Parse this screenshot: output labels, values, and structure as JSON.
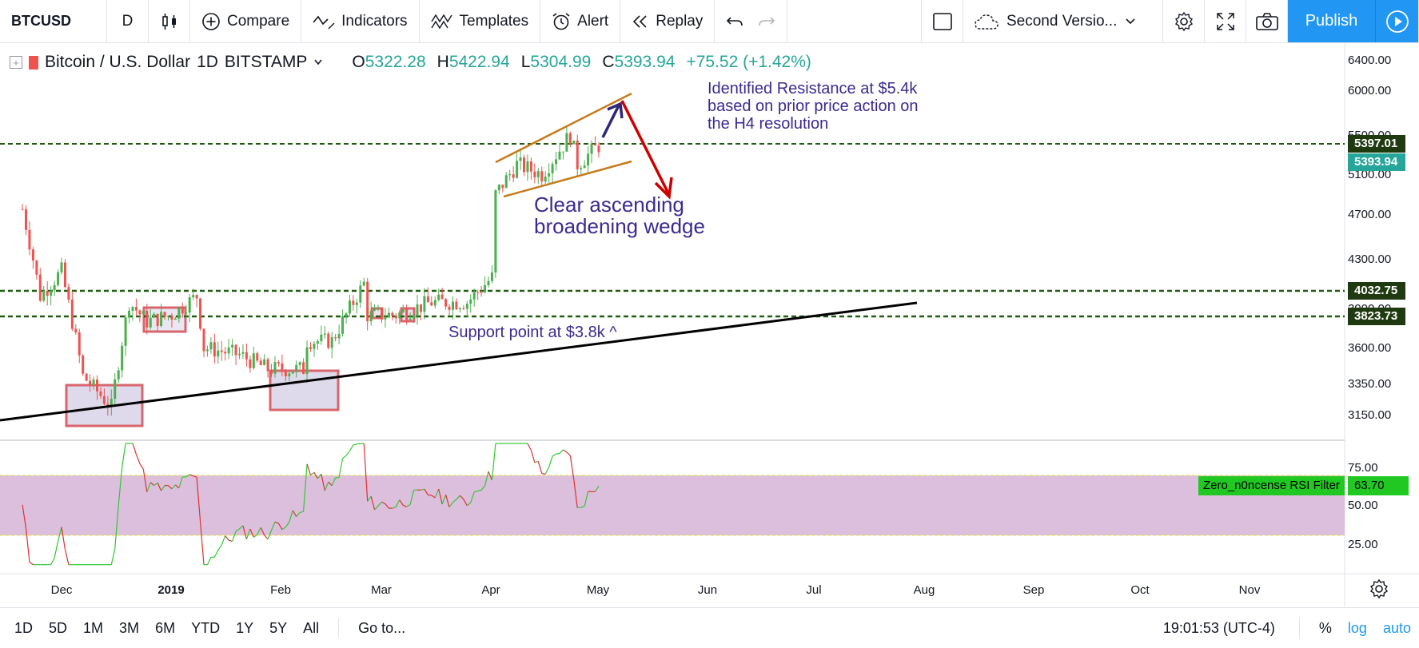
{
  "toolbar": {
    "symbol": "BTCUSD",
    "interval": "D",
    "compare": "Compare",
    "indicators": "Indicators",
    "templates": "Templates",
    "alert": "Alert",
    "replay": "Replay",
    "layout_name": "Second Versio...",
    "publish": "Publish"
  },
  "legend": {
    "title": "Bitcoin / U.S. Dollar",
    "interval": "1D",
    "exchange": "BITSTAMP",
    "o_label": "O",
    "o": "5322.28",
    "h_label": "H",
    "h": "5422.94",
    "l_label": "L",
    "l": "5304.99",
    "c_label": "C",
    "c": "5393.94",
    "change": "+75.52 (+1.42%)"
  },
  "annotations": {
    "resistance": [
      "Identified Resistance at $5.4k",
      "based on prior price action on",
      "the H4 resolution"
    ],
    "wedge": [
      "Clear ascending",
      "broadening wedge"
    ],
    "support": "Support point at $3.8k ^"
  },
  "price_axis": {
    "ticks": [
      "6400.00",
      "6000.00",
      "5500.00",
      "5100.00",
      "4700.00",
      "4300.00",
      "3900.00",
      "3600.00",
      "3350.00",
      "3150.00"
    ],
    "tags": [
      {
        "text": "5397.01",
        "color": "#1f3a10"
      },
      {
        "text": "5393.94",
        "color": "#26a69a"
      },
      {
        "text": "4032.75",
        "color": "#1f3a10"
      },
      {
        "text": "3823.73",
        "color": "#1f3a10"
      }
    ]
  },
  "rsi": {
    "name": "Zero_n0ncense RSI Filter",
    "value": "63.70",
    "ticks": [
      "75.00",
      "50.00",
      "25.00"
    ],
    "band_color": "#dbbfdd"
  },
  "time_axis": [
    "Dec",
    "2019",
    "Feb",
    "Mar",
    "Apr",
    "May",
    "Jun",
    "Jul",
    "Aug",
    "Sep",
    "Oct",
    "Nov"
  ],
  "bottom": {
    "ranges": [
      "1D",
      "5D",
      "1M",
      "3M",
      "6M",
      "YTD",
      "1Y",
      "5Y",
      "All"
    ],
    "goto": "Go to...",
    "clock": "19:01:53 (UTC-4)",
    "percent": "%",
    "log": "log",
    "auto": "auto"
  },
  "colors": {
    "up": "#4caf50",
    "down": "#ef5350",
    "hline": "#1f5c10",
    "wedge": "#c77a1a",
    "arrow_up": "#2e2677",
    "arrow_down": "#cc0000",
    "trend": "#000000",
    "box_border": "#d9656d",
    "box_fill": "#d6cfe6"
  },
  "chart_data": {
    "type": "candlestick",
    "symbol": "Bitcoin / U.S. Dollar",
    "interval": "1D",
    "x_range": [
      "2018-11-20",
      "2019-11-30"
    ],
    "y_ticks": [
      3150,
      3350,
      3600,
      3900,
      4300,
      4700,
      5100,
      5500,
      6000,
      6400
    ],
    "horizontal_levels": [
      5397.01,
      4032.75,
      3823.73
    ],
    "last_close": 5393.94,
    "close_series_approx": [
      [
        "2018-11-20",
        4750
      ],
      [
        "2018-11-25",
        4000
      ],
      [
        "2018-12-01",
        4200
      ],
      [
        "2018-12-07",
        3400
      ],
      [
        "2018-12-15",
        3200
      ],
      [
        "2018-12-20",
        3950
      ],
      [
        "2018-12-25",
        3800
      ],
      [
        "2019-01-01",
        3850
      ],
      [
        "2019-01-08",
        4000
      ],
      [
        "2019-01-10",
        3600
      ],
      [
        "2019-01-20",
        3550
      ],
      [
        "2019-01-28",
        3450
      ],
      [
        "2019-02-07",
        3450
      ],
      [
        "2019-02-08",
        3650
      ],
      [
        "2019-02-15",
        3650
      ],
      [
        "2019-02-24",
        4100
      ],
      [
        "2019-02-25",
        3850
      ],
      [
        "2019-03-05",
        3850
      ],
      [
        "2019-03-15",
        3950
      ],
      [
        "2019-03-25",
        3950
      ],
      [
        "2019-04-01",
        4150
      ],
      [
        "2019-04-02",
        4900
      ],
      [
        "2019-04-08",
        5200
      ],
      [
        "2019-04-15",
        5100
      ],
      [
        "2019-04-23",
        5500
      ],
      [
        "2019-04-25",
        5200
      ],
      [
        "2019-05-01",
        5393.94
      ]
    ],
    "rsi": {
      "name": "Zero_n0ncense RSI Filter",
      "ticks": [
        25,
        50,
        75
      ],
      "band": [
        30,
        70
      ],
      "last": 63.7
    }
  }
}
